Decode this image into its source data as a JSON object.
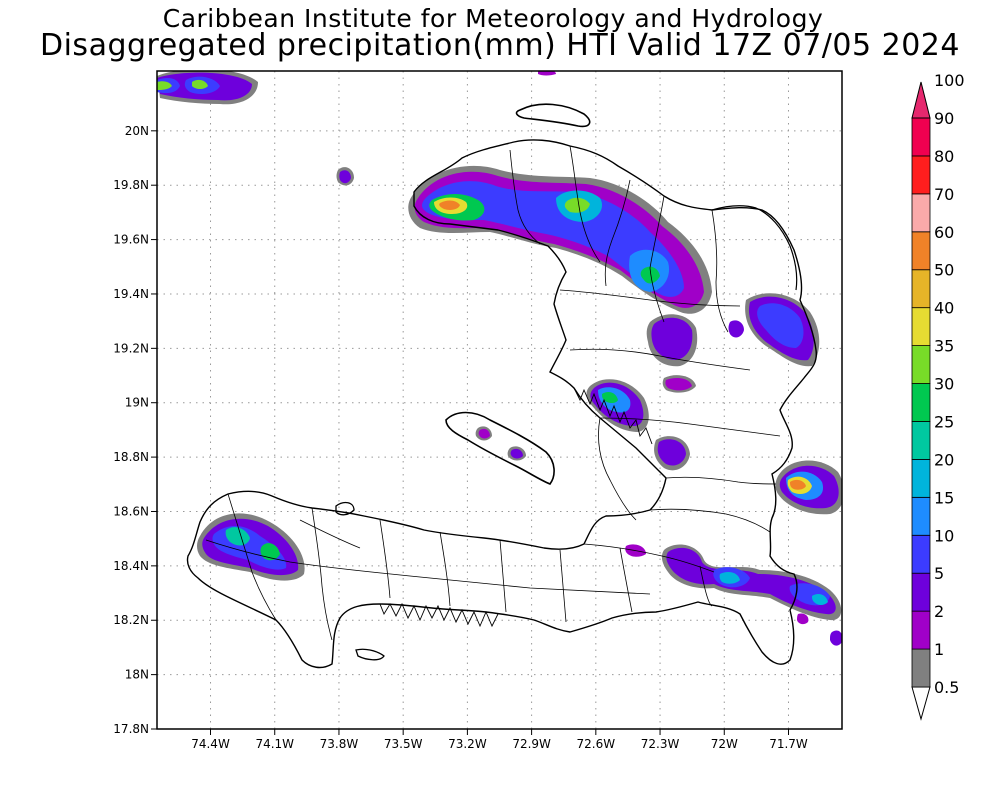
{
  "title_line1": "Caribbean Institute for Meteorology and Hydrology",
  "title_line2": "Disaggregated precipitation(mm) HTI Valid 17Z 07/05 2024",
  "map": {
    "lon_min": -74.65,
    "lon_max": -71.45,
    "lat_min": 17.8,
    "lat_max": 20.22,
    "x_ticks": [
      {
        "lon": -74.4,
        "label": "74.4W"
      },
      {
        "lon": -74.1,
        "label": "74.1W"
      },
      {
        "lon": -73.8,
        "label": "73.8W"
      },
      {
        "lon": -73.5,
        "label": "73.5W"
      },
      {
        "lon": -73.2,
        "label": "73.2W"
      },
      {
        "lon": -72.9,
        "label": "72.9W"
      },
      {
        "lon": -72.6,
        "label": "72.6W"
      },
      {
        "lon": -72.3,
        "label": "72.3W"
      },
      {
        "lon": -72.0,
        "label": "72W"
      },
      {
        "lon": -71.7,
        "label": "71.7W"
      }
    ],
    "y_ticks": [
      {
        "lat": 20.0,
        "label": "20N"
      },
      {
        "lat": 19.8,
        "label": "19.8N"
      },
      {
        "lat": 19.6,
        "label": "19.6N"
      },
      {
        "lat": 19.4,
        "label": "19.4N"
      },
      {
        "lat": 19.2,
        "label": "19.2N"
      },
      {
        "lat": 19.0,
        "label": "19N"
      },
      {
        "lat": 18.8,
        "label": "18.8N"
      },
      {
        "lat": 18.6,
        "label": "18.6N"
      },
      {
        "lat": 18.4,
        "label": "18.4N"
      },
      {
        "lat": 18.2,
        "label": "18.2N"
      },
      {
        "lat": 18.0,
        "label": "18N"
      },
      {
        "lat": 17.8,
        "label": "17.8N"
      }
    ]
  },
  "legend": [
    {
      "label": "0.5",
      "color": "#ffffff"
    },
    {
      "label": "1",
      "color": "#808080"
    },
    {
      "label": "2",
      "color": "#a000c8"
    },
    {
      "label": "5",
      "color": "#6e00dc"
    },
    {
      "label": "10",
      "color": "#3c3cff"
    },
    {
      "label": "15",
      "color": "#1e8cff"
    },
    {
      "label": "20",
      "color": "#00b4dc"
    },
    {
      "label": "25",
      "color": "#00c8a0"
    },
    {
      "label": "30",
      "color": "#00c850"
    },
    {
      "label": "35",
      "color": "#78dc28"
    },
    {
      "label": "40",
      "color": "#e6dc32"
    },
    {
      "label": "50",
      "color": "#e6b428"
    },
    {
      "label": "60",
      "color": "#f08228"
    },
    {
      "label": "70",
      "color": "#faaaaa"
    },
    {
      "label": "80",
      "color": "#ff1e1e"
    },
    {
      "label": "90",
      "color": "#f00050"
    },
    {
      "label": "100",
      "color": "#e6286e"
    }
  ]
}
